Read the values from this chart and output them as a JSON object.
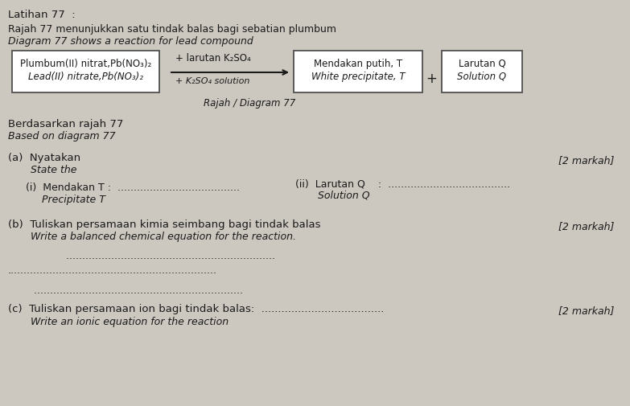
{
  "title": "Latihan 77  :",
  "bg_color": "#ccc8c0",
  "text_color": "#1a1a1a",
  "line1_normal": "Rajah 77 menunjukkan satu tindak balas bagi sebatian plumbum",
  "line1_italic": "Diagram 77 shows a reaction for lead compound",
  "box1_line1": "Plumbum(II) nitrat,Pb(NO₃)₂",
  "box1_line2": "Lead(II) nitrate,Pb(NO₃)₂",
  "arrow_top": "+ larutan K₂SO₄",
  "arrow_bottom": "+ K₂SO₄ solution",
  "box2_line1": "Mendakan putih, T",
  "box2_line2": "White precipitate, T",
  "plus_sign": "+",
  "box3_line1": "Larutan Q",
  "box3_line2": "Solution Q",
  "diagram_label": "Rajah / Diagram 77",
  "based_normal": "Berdasarkan rajah 77",
  "based_italic": "Based on diagram 77",
  "a_normal": "(a)  Nyatakan",
  "a_italic": "       State the",
  "markah_a": "[2 markah]",
  "i_label_left": "   (i)  Mendakan T :  ......................................",
  "i_sub": "        Precipitate T",
  "ii_label": "   (ii)  Larutan Q    :  ......................................",
  "ii_sub": "          Solution Q",
  "b_normal": "(b)  Tuliskan persamaan kimia seimbang bagi tindak balas",
  "b_italic": "       Write a balanced chemical equation for the reaction.",
  "markah_b": "[2 markah]",
  "dots_b1": "        .................................................................",
  "dots_b2": ".................................................................",
  "dots_c0": "        .................................................................",
  "c_normal": "(c)  Tuliskan persamaan ion bagi tindak balas:  .....................................",
  "c_italic": "       Write an ionic equation for the reaction",
  "markah_c": "[2 markah]"
}
